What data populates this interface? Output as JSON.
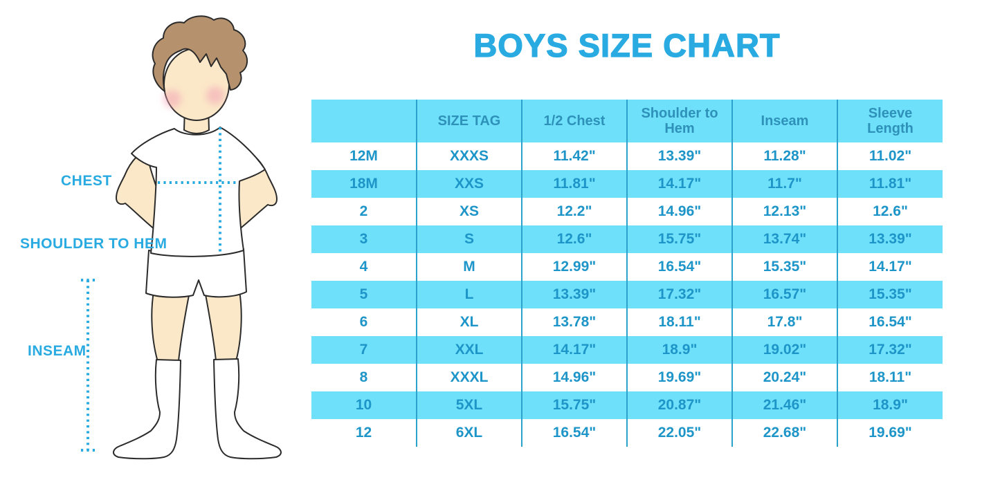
{
  "labels": {
    "chest": "CHEST",
    "shoulder_to_hem": "SHOULDER TO HEM",
    "inseam": "INSEAM"
  },
  "colors": {
    "accent": "#29ABE2",
    "table_fill": "#6FE0F9",
    "cell_text": "#1E95C8",
    "header_text": "#2E91B9",
    "divider": "#2AA2CC",
    "hair": "#B5926D",
    "skin": "#FBE8C8",
    "blush": "#F3A3B5",
    "outline": "#2b2b2b"
  },
  "icons": {
    "illustration": "boy-measurement-figure"
  },
  "chart_data": {
    "type": "table",
    "title": "BOYS SIZE CHART",
    "columns": [
      "",
      "SIZE TAG",
      "1/2 Chest",
      "Shoulder to Hem",
      "Inseam",
      "Sleeve Length"
    ],
    "rows": [
      [
        "12M",
        "XXXS",
        "11.42\"",
        "13.39\"",
        "11.28\"",
        "11.02\""
      ],
      [
        "18M",
        "XXS",
        "11.81\"",
        "14.17\"",
        "11.7\"",
        "11.81\""
      ],
      [
        "2",
        "XS",
        "12.2\"",
        "14.96\"",
        "12.13\"",
        "12.6\""
      ],
      [
        "3",
        "S",
        "12.6\"",
        "15.75\"",
        "13.74\"",
        "13.39\""
      ],
      [
        "4",
        "M",
        "12.99\"",
        "16.54\"",
        "15.35\"",
        "14.17\""
      ],
      [
        "5",
        "L",
        "13.39\"",
        "17.32\"",
        "16.57\"",
        "15.35\""
      ],
      [
        "6",
        "XL",
        "13.78\"",
        "18.11\"",
        "17.8\"",
        "16.54\""
      ],
      [
        "7",
        "XXL",
        "14.17\"",
        "18.9\"",
        "19.02\"",
        "17.32\""
      ],
      [
        "8",
        "XXXL",
        "14.96\"",
        "19.69\"",
        "20.24\"",
        "18.11\""
      ],
      [
        "10",
        "5XL",
        "15.75\"",
        "20.87\"",
        "21.46\"",
        "18.9\""
      ],
      [
        "12",
        "6XL",
        "16.54\"",
        "22.05\"",
        "22.68\"",
        "19.69\""
      ]
    ]
  }
}
